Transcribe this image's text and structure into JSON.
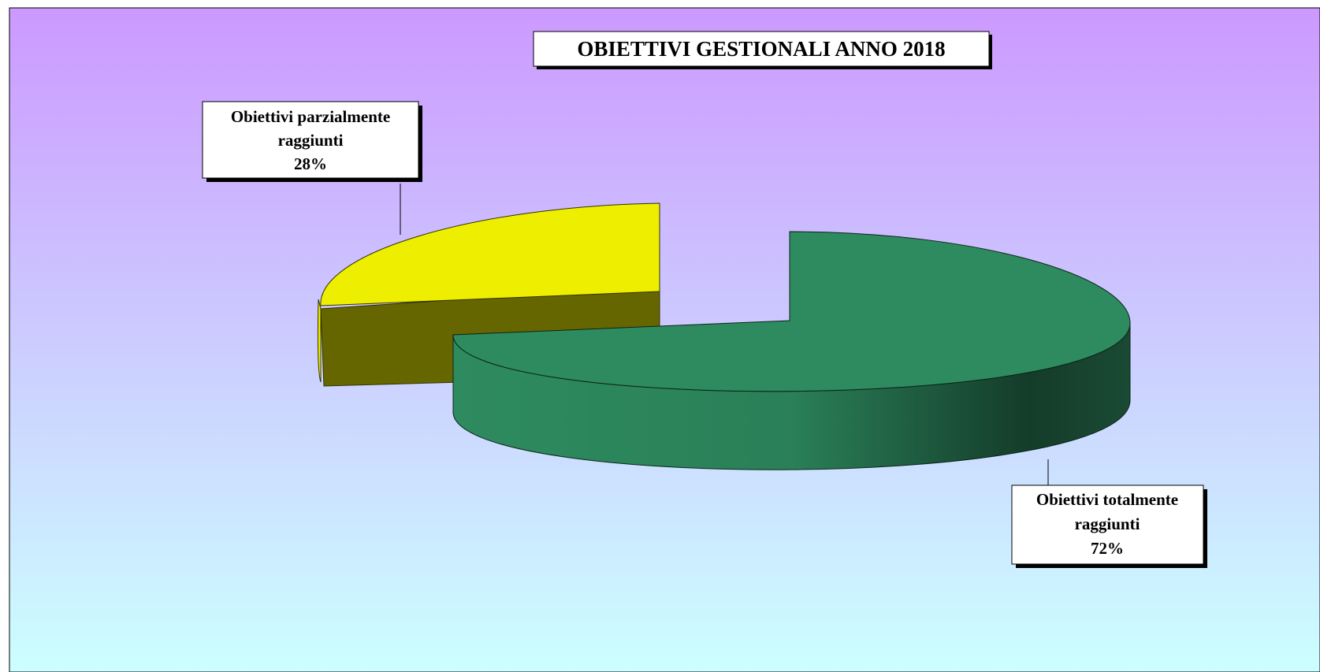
{
  "chart_data": {
    "type": "pie",
    "title": "OBIETTIVI  GESTIONALI ANNO 2018",
    "slices": [
      {
        "name": "Obiettivi totalmente raggiunti",
        "label_lines": [
          "Obiettivi totalmente",
          "raggiunti"
        ],
        "percent_label": "72%",
        "value": 72,
        "color": "#2e8b5f"
      },
      {
        "name": "Obiettivi parzialmente raggiunti",
        "label_lines": [
          "Obiettivi parzialmente",
          "raggiunti"
        ],
        "percent_label": "28%",
        "value": 28,
        "color": "#eeee00"
      }
    ],
    "legend": "none",
    "style": "3d-exploded",
    "background": {
      "top": "#cc99ff",
      "bottom": "#ccffff"
    }
  }
}
